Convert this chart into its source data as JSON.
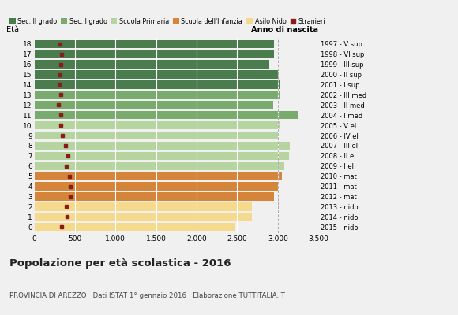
{
  "ages": [
    18,
    17,
    16,
    15,
    14,
    13,
    12,
    11,
    10,
    9,
    8,
    7,
    6,
    5,
    4,
    3,
    2,
    1,
    0
  ],
  "bar_values": [
    2950,
    2950,
    2900,
    3000,
    3020,
    3030,
    2940,
    3250,
    3020,
    3010,
    3150,
    3140,
    3080,
    3050,
    3010,
    2950,
    2680,
    2680,
    2480
  ],
  "stranieri_values": [
    320,
    340,
    330,
    320,
    310,
    330,
    300,
    330,
    330,
    350,
    380,
    410,
    390,
    430,
    440,
    440,
    390,
    400,
    340
  ],
  "right_labels": [
    "1997 - V sup",
    "1998 - VI sup",
    "1999 - III sup",
    "2000 - II sup",
    "2001 - I sup",
    "2002 - III med",
    "2003 - II med",
    "2004 - I med",
    "2005 - V el",
    "2006 - IV el",
    "2007 - III el",
    "2008 - II el",
    "2009 - I el",
    "2010 - mat",
    "2011 - mat",
    "2012 - mat",
    "2013 - nido",
    "2014 - nido",
    "2015 - nido"
  ],
  "colors": {
    "sec2": "#4a7c4e",
    "sec1": "#7aab6e",
    "primaria": "#b5d4a0",
    "infanzia": "#d4853a",
    "nido": "#f5d98c",
    "stranieri": "#8b1a1a"
  },
  "xlim": [
    0,
    3500
  ],
  "xticks": [
    0,
    500,
    1000,
    1500,
    2000,
    2500,
    3000,
    3500
  ],
  "xtick_labels": [
    "0",
    "500",
    "1.000",
    "1.500",
    "2.000",
    "2.500",
    "3.000",
    "3.500"
  ],
  "title": "Popolazione per età scolastica - 2016",
  "subtitle": "PROVINCIA DI AREZZO · Dati ISTAT 1° gennaio 2016 · Elaborazione TUTTITALIA.IT",
  "ylabel": "Età",
  "right_axis_label": "Anno di nascita",
  "legend_items": [
    "Sec. II grado",
    "Sec. I grado",
    "Scuola Primaria",
    "Scuola dell'Infanzia",
    "Asilo Nido",
    "Stranieri"
  ],
  "bg_color": "#f0f0f0",
  "bar_bg_color": "#ffffff"
}
